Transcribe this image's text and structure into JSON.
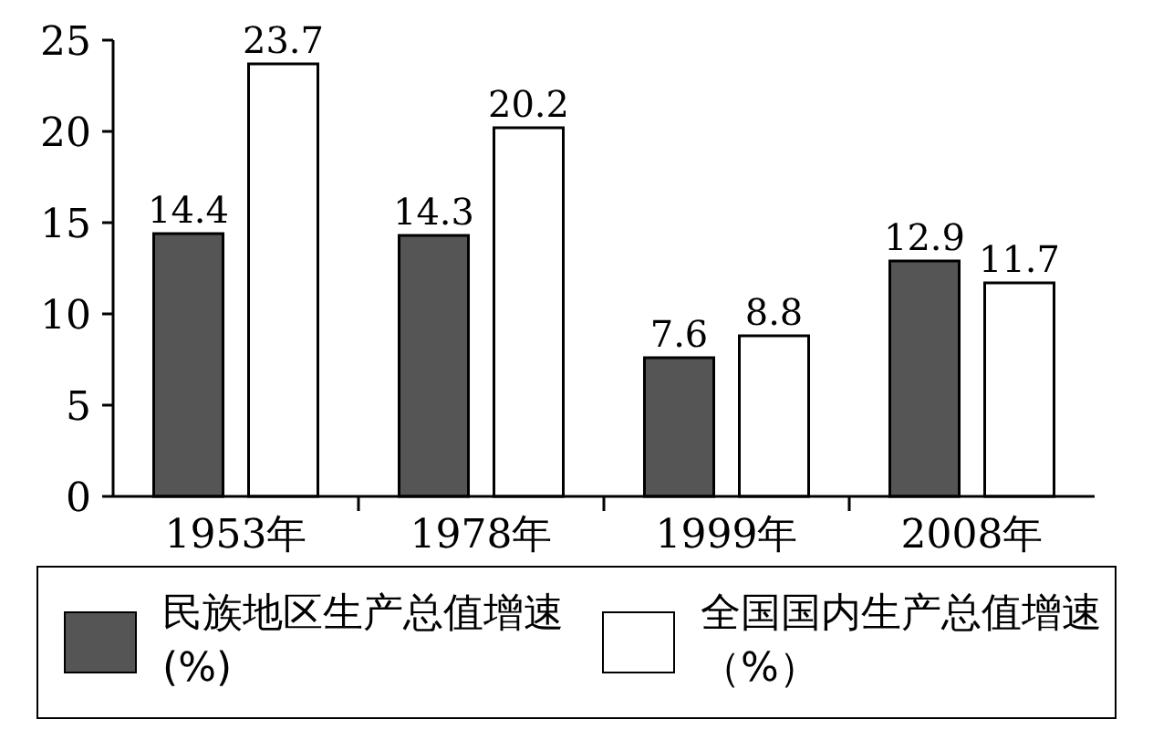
{
  "chart_data": {
    "type": "bar",
    "categories": [
      "1953年",
      "1978年",
      "1999年",
      "2008年"
    ],
    "series": [
      {
        "name": "民族地区生产总值增速(%)",
        "color": "#555555",
        "values": [
          14.4,
          14.3,
          7.6,
          12.9
        ]
      },
      {
        "name": "全国国内生产总值增速（%）",
        "color": "#ffffff",
        "values": [
          23.7,
          20.2,
          8.8,
          11.7
        ]
      }
    ],
    "ylim": [
      0,
      25
    ],
    "yticks": [
      0,
      5,
      10,
      15,
      20,
      25
    ],
    "grid": false,
    "legend": "bottom",
    "data_labels": true
  }
}
